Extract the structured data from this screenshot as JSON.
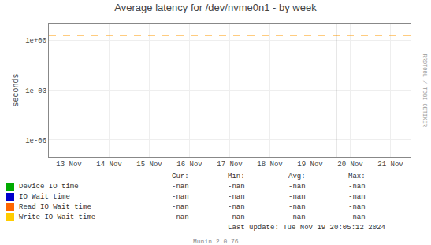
{
  "chart_data": {
    "type": "line",
    "title": "Average latency for /dev/nvme0n1 - by week",
    "ylabel": "seconds",
    "categories": [
      "13 Nov",
      "14 Nov",
      "15 Nov",
      "16 Nov",
      "17 Nov",
      "18 Nov",
      "19 Nov",
      "20 Nov",
      "21 Nov"
    ],
    "series": [
      {
        "name": "Device IO time",
        "color": "#00aa00",
        "values": [
          null,
          null,
          null,
          null,
          null,
          null,
          null,
          null,
          null
        ],
        "legend_values": [
          "-nan",
          "-nan",
          "-nan",
          "-nan"
        ]
      },
      {
        "name": "IO Wait time",
        "color": "#0000cc",
        "values": [
          null,
          null,
          null,
          null,
          null,
          null,
          null,
          null,
          null
        ],
        "legend_values": [
          "-nan",
          "-nan",
          "-nan",
          "-nan"
        ]
      },
      {
        "name": "Read IO Wait time",
        "color": "#ff6600",
        "values": [
          null,
          null,
          null,
          null,
          null,
          null,
          null,
          null,
          null
        ],
        "legend_values": [
          "-nan",
          "-nan",
          "-nan",
          "-nan"
        ]
      },
      {
        "name": "Write IO Wait time",
        "color": "#ffcc00",
        "values": [
          null,
          null,
          null,
          null,
          null,
          null,
          null,
          null,
          null
        ],
        "legend_values": [
          "-nan",
          "-nan",
          "-nan",
          "-nan"
        ]
      }
    ],
    "legend_columns": [
      "Cur:",
      "Min:",
      "Avg:",
      "Max:"
    ],
    "log": "y",
    "ylim": [
      1e-07,
      10.0
    ],
    "yticks": [
      {
        "value": 1e-06,
        "label": "1e-06"
      },
      {
        "value": 0.001,
        "label": "1e-03"
      },
      {
        "value": 1.0,
        "label": "1e+00"
      }
    ],
    "grid": true,
    "reference_lines": [
      {
        "axis": "y",
        "value": 2.0,
        "color": "#ff9900",
        "line_style": "dashed"
      },
      {
        "axis": "x",
        "value": 6.65,
        "color": "#555555",
        "line_style": "solid"
      }
    ],
    "annotations": [
      "Last update: Tue Nov 19 20:05:12 2024",
      "Munin 2.0.76",
      "RRDTOOL / TOBI OETIKER"
    ]
  }
}
